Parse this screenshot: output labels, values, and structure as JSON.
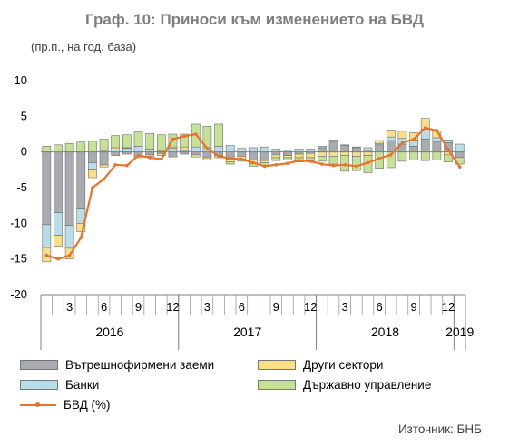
{
  "chart_data": {
    "type": "bar",
    "title": "Граф. 10: Приноси към изменението на БВД",
    "units": "(пр.п., на год. база)",
    "ylim": [
      -20,
      10
    ],
    "yticks": [
      10,
      5,
      0,
      -5,
      -10,
      -15,
      -20
    ],
    "xticks": [
      "3",
      "6",
      "9",
      "12",
      "3",
      "6",
      "9",
      "12",
      "3",
      "6",
      "9",
      "12"
    ],
    "years": [
      "2016",
      "2017",
      "2018",
      "2019"
    ],
    "source": "Източник: БНБ",
    "colors": {
      "intercompany": "#a8acb0",
      "banks": "#b7dee8",
      "other": "#f9df85",
      "government": "#c5e196",
      "line": "#e8742c"
    },
    "series": [
      {
        "name": "Вътрешнофирмени заеми",
        "key": "intercompany",
        "values": [
          -10.2,
          -8.5,
          -10.3,
          -8.0,
          -1.5,
          -1.8,
          -0.5,
          -0.3,
          -0.6,
          -0.4,
          -0.2,
          -0.7,
          -0.3,
          -0.4,
          -0.8,
          -0.5,
          -1.0,
          -0.6,
          -1.1,
          -1.2,
          -0.4,
          -0.5,
          -0.3,
          -0.2,
          0.6,
          1.5,
          0.9,
          0.6,
          0.3,
          1.0,
          1.6,
          1.1,
          0.8,
          1.8,
          1.4,
          1.3,
          -0.8
        ]
      },
      {
        "name": "Банки",
        "key": "banks",
        "values": [
          -3.2,
          -3.2,
          -3.2,
          -2.0,
          -0.9,
          0.2,
          0.3,
          0.5,
          0.8,
          0.4,
          0.1,
          0.5,
          0.2,
          0.7,
          0.6,
          0.8,
          0.9,
          0.5,
          0.6,
          0.7,
          0.4,
          0.1,
          0.4,
          0.4,
          0.2,
          0.2,
          0.1,
          0.1,
          0.3,
          0.2,
          0.5,
          0.8,
          0.9,
          1.4,
          0.6,
          0.4,
          1.1
        ]
      },
      {
        "name": "Други сектори",
        "key": "other",
        "values": [
          -2.0,
          -1.5,
          -1.5,
          -1.2,
          -1.2,
          -0.3,
          0.3,
          0.1,
          -0.2,
          -0.2,
          -0.3,
          0.2,
          0.5,
          -0.3,
          -0.3,
          -0.3,
          -0.4,
          -0.4,
          -0.5,
          -0.3,
          -0.4,
          -0.3,
          -0.5,
          -0.6,
          -0.6,
          -0.6,
          -0.5,
          -0.6,
          -0.5,
          0.4,
          1.0,
          1.0,
          1.0,
          1.5,
          0.9,
          -0.4,
          -0.3
        ]
      },
      {
        "name": "Държавно управление",
        "key": "government",
        "values": [
          0.8,
          1.0,
          1.2,
          1.4,
          1.5,
          1.6,
          1.7,
          1.8,
          2.0,
          2.2,
          2.3,
          1.8,
          1.8,
          3.2,
          3.0,
          3.1,
          -0.3,
          -0.3,
          -0.4,
          -0.4,
          -0.4,
          -0.3,
          -0.6,
          -0.4,
          -0.7,
          -1.1,
          -2.2,
          -2.0,
          -2.4,
          -2.3,
          -2.2,
          -1.3,
          -1.1,
          -1.2,
          -1.1,
          -1.0,
          -0.6
        ]
      },
      {
        "name": "БВД (%)",
        "key": "line",
        "values": [
          -14.5,
          -15.0,
          -14.5,
          -12.0,
          -5.0,
          -3.8,
          -1.8,
          -1.9,
          -0.5,
          -0.8,
          -1.0,
          1.8,
          2.2,
          2.5,
          0.5,
          -0.6,
          -0.9,
          -1.0,
          -1.5,
          -2.0,
          -1.8,
          -1.6,
          -1.2,
          -1.3,
          -1.7,
          -1.9,
          -1.8,
          -2.0,
          -1.5,
          -0.9,
          -0.4,
          1.3,
          1.8,
          3.4,
          3.0,
          0.3,
          -2.1
        ]
      }
    ]
  }
}
